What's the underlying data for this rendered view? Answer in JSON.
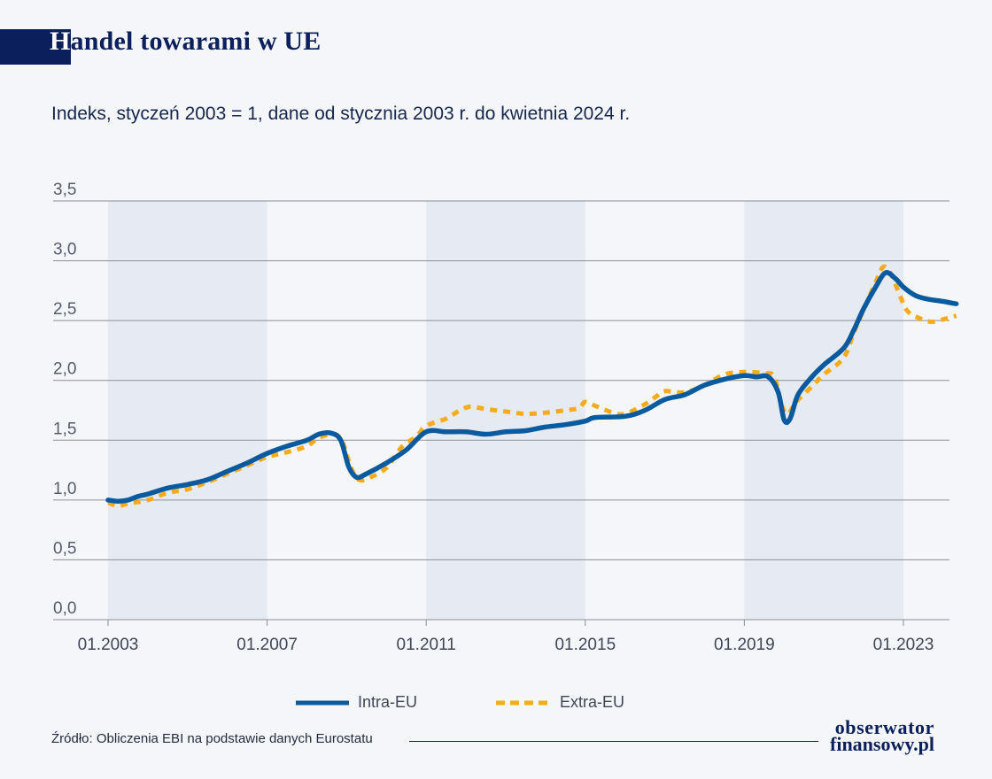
{
  "header": {
    "title_first": "H",
    "title_rest": "andel towarami w UE",
    "subtitle": "Indeks, styczeń 2003 = 1, dane od stycznia 2003 r. do kwietnia 2024 r."
  },
  "colors": {
    "navy": "#0b1f5c",
    "intra": "#0a5aa0",
    "extra": "#f5ab1c",
    "band": "#e6eaf2",
    "grid": "#8c8f96"
  },
  "chart_data": {
    "type": "line",
    "title": "Handel towarami w UE",
    "subtitle": "Indeks, styczeń 2003 = 1, dane od stycznia 2003 r. do kwietnia 2024 r.",
    "xlabel": "",
    "ylabel": "",
    "x_range": [
      2002.67,
      2024.33
    ],
    "ylim": [
      0,
      3.5
    ],
    "y_ticks": [
      "0,0",
      "0,5",
      "1,0",
      "1,5",
      "2,0",
      "2,5",
      "3,0",
      "3,5"
    ],
    "y_tick_values": [
      0,
      0.5,
      1.0,
      1.5,
      2.0,
      2.5,
      3.0,
      3.5
    ],
    "x_ticks": [
      "01.2003",
      "01.2007",
      "01.2011",
      "01.2015",
      "01.2019",
      "01.2023"
    ],
    "x_tick_values": [
      2003,
      2007,
      2011,
      2015,
      2019,
      2023
    ],
    "shaded_periods": [
      [
        2003,
        2007
      ],
      [
        2011,
        2015
      ],
      [
        2019,
        2023
      ]
    ],
    "grid": "horizontal",
    "legend_position": "bottom-center",
    "series": [
      {
        "name": "Intra-EU",
        "style": "solid",
        "points": [
          [
            2003.0,
            1.0
          ],
          [
            2003.25,
            0.99
          ],
          [
            2003.5,
            1.0
          ],
          [
            2003.75,
            1.03
          ],
          [
            2004.0,
            1.05
          ],
          [
            2004.5,
            1.1
          ],
          [
            2005.0,
            1.13
          ],
          [
            2005.5,
            1.17
          ],
          [
            2006.0,
            1.24
          ],
          [
            2006.5,
            1.31
          ],
          [
            2007.0,
            1.39
          ],
          [
            2007.5,
            1.45
          ],
          [
            2008.0,
            1.5
          ],
          [
            2008.3,
            1.55
          ],
          [
            2008.6,
            1.56
          ],
          [
            2008.85,
            1.5
          ],
          [
            2009.05,
            1.28
          ],
          [
            2009.25,
            1.19
          ],
          [
            2009.5,
            1.22
          ],
          [
            2010.0,
            1.31
          ],
          [
            2010.5,
            1.42
          ],
          [
            2011.0,
            1.57
          ],
          [
            2011.5,
            1.57
          ],
          [
            2012.0,
            1.57
          ],
          [
            2012.5,
            1.55
          ],
          [
            2013.0,
            1.57
          ],
          [
            2013.5,
            1.58
          ],
          [
            2014.0,
            1.61
          ],
          [
            2014.5,
            1.63
          ],
          [
            2015.0,
            1.66
          ],
          [
            2015.25,
            1.69
          ],
          [
            2016.0,
            1.7
          ],
          [
            2016.5,
            1.75
          ],
          [
            2017.0,
            1.84
          ],
          [
            2017.5,
            1.88
          ],
          [
            2018.0,
            1.96
          ],
          [
            2018.5,
            2.01
          ],
          [
            2019.0,
            2.04
          ],
          [
            2019.3,
            2.03
          ],
          [
            2019.6,
            2.03
          ],
          [
            2019.85,
            1.9
          ],
          [
            2020.0,
            1.67
          ],
          [
            2020.15,
            1.68
          ],
          [
            2020.35,
            1.88
          ],
          [
            2020.7,
            2.03
          ],
          [
            2021.0,
            2.13
          ],
          [
            2021.5,
            2.27
          ],
          [
            2021.75,
            2.42
          ],
          [
            2022.0,
            2.6
          ],
          [
            2022.3,
            2.78
          ],
          [
            2022.55,
            2.9
          ],
          [
            2022.8,
            2.85
          ],
          [
            2023.0,
            2.78
          ],
          [
            2023.3,
            2.71
          ],
          [
            2023.6,
            2.68
          ],
          [
            2024.0,
            2.66
          ],
          [
            2024.33,
            2.64
          ]
        ]
      },
      {
        "name": "Extra-EU",
        "style": "dashed",
        "points": [
          [
            2003.0,
            0.98
          ],
          [
            2003.25,
            0.95
          ],
          [
            2003.5,
            0.97
          ],
          [
            2004.0,
            1.0
          ],
          [
            2004.5,
            1.06
          ],
          [
            2005.0,
            1.09
          ],
          [
            2005.5,
            1.15
          ],
          [
            2006.0,
            1.22
          ],
          [
            2006.5,
            1.29
          ],
          [
            2007.0,
            1.36
          ],
          [
            2007.5,
            1.4
          ],
          [
            2008.0,
            1.45
          ],
          [
            2008.3,
            1.52
          ],
          [
            2008.7,
            1.55
          ],
          [
            2008.9,
            1.48
          ],
          [
            2009.1,
            1.28
          ],
          [
            2009.3,
            1.17
          ],
          [
            2009.6,
            1.19
          ],
          [
            2010.0,
            1.27
          ],
          [
            2010.4,
            1.45
          ],
          [
            2010.75,
            1.53
          ],
          [
            2011.0,
            1.62
          ],
          [
            2011.5,
            1.68
          ],
          [
            2011.8,
            1.74
          ],
          [
            2012.1,
            1.78
          ],
          [
            2012.5,
            1.76
          ],
          [
            2013.0,
            1.74
          ],
          [
            2013.5,
            1.72
          ],
          [
            2014.0,
            1.73
          ],
          [
            2014.5,
            1.75
          ],
          [
            2014.85,
            1.77
          ],
          [
            2015.0,
            1.82
          ],
          [
            2015.3,
            1.78
          ],
          [
            2015.7,
            1.73
          ],
          [
            2016.0,
            1.72
          ],
          [
            2016.5,
            1.8
          ],
          [
            2016.8,
            1.87
          ],
          [
            2017.0,
            1.91
          ],
          [
            2017.5,
            1.9
          ],
          [
            2018.0,
            1.96
          ],
          [
            2018.5,
            2.05
          ],
          [
            2019.0,
            2.07
          ],
          [
            2019.5,
            2.06
          ],
          [
            2019.75,
            2.03
          ],
          [
            2019.95,
            1.78
          ],
          [
            2020.1,
            1.72
          ],
          [
            2020.3,
            1.82
          ],
          [
            2020.7,
            1.95
          ],
          [
            2021.0,
            2.05
          ],
          [
            2021.5,
            2.19
          ],
          [
            2021.75,
            2.4
          ],
          [
            2022.0,
            2.59
          ],
          [
            2022.3,
            2.82
          ],
          [
            2022.5,
            2.95
          ],
          [
            2022.7,
            2.88
          ],
          [
            2022.9,
            2.72
          ],
          [
            2023.1,
            2.58
          ],
          [
            2023.4,
            2.52
          ],
          [
            2023.7,
            2.49
          ],
          [
            2024.0,
            2.51
          ],
          [
            2024.33,
            2.54
          ]
        ]
      }
    ]
  },
  "legend": {
    "intra_label": "Intra-EU",
    "extra_label": "Extra-EU"
  },
  "footer": {
    "source": "Źródło: Obliczenia EBI na podstawie danych Eurostatu",
    "brand_line1": "obserwator",
    "brand_line2": "finansowy.pl"
  }
}
